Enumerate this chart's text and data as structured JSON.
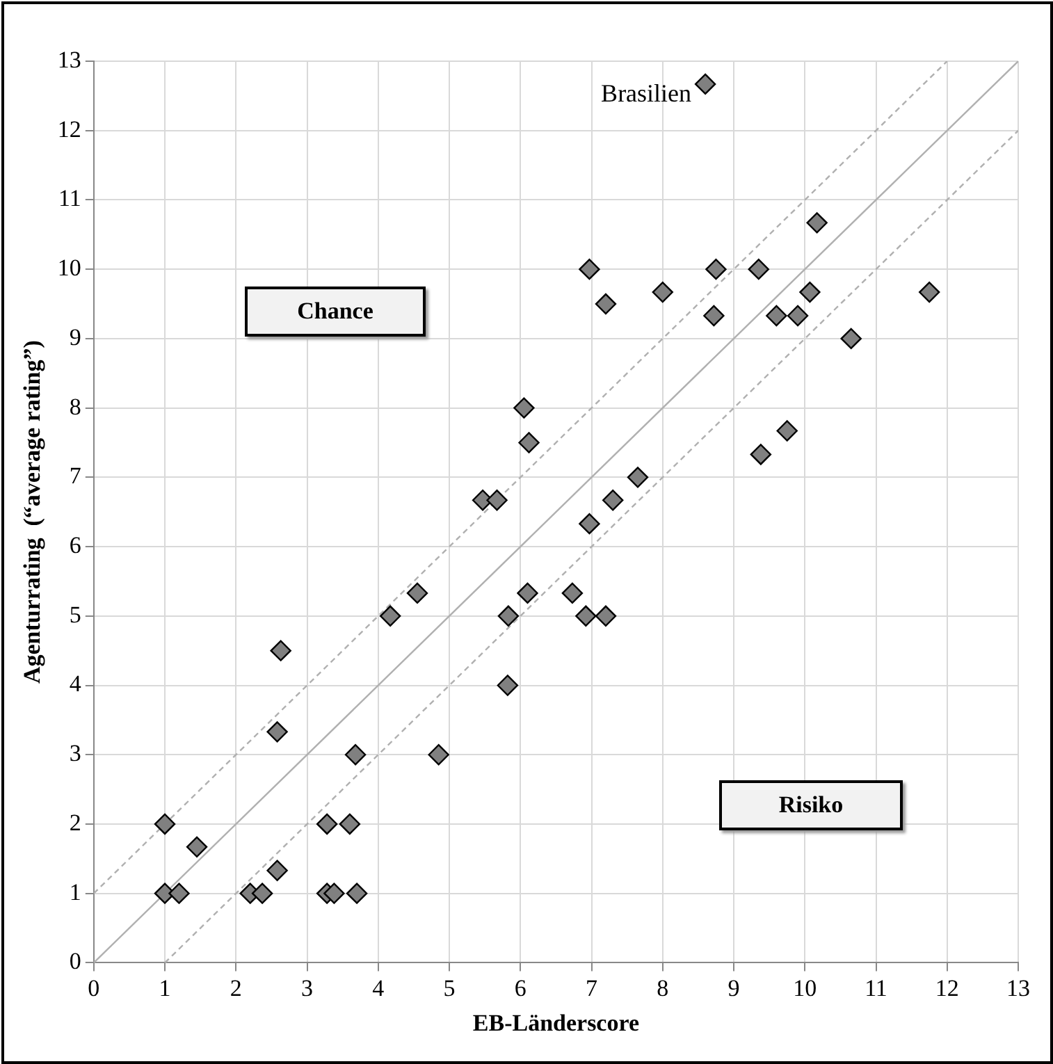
{
  "chart_data": {
    "type": "scatter",
    "xlabel": "EB-Länderscore",
    "ylabel": "Agenturrating  (“average rating”)",
    "xlim": [
      0,
      13
    ],
    "ylim": [
      0,
      13
    ],
    "xticks": [
      0,
      1,
      2,
      3,
      4,
      5,
      6,
      7,
      8,
      9,
      10,
      11,
      12,
      13
    ],
    "yticks": [
      0,
      1,
      2,
      3,
      4,
      5,
      6,
      7,
      8,
      9,
      10,
      11,
      12,
      13
    ],
    "grid": true,
    "legend": false,
    "marker": "diamond",
    "annotations": [
      {
        "text": "Brasilien",
        "x": 8.6,
        "y": 12.67
      },
      "Chance",
      "Risiko"
    ],
    "series": [
      {
        "type": "line",
        "color": "#b0b0b0",
        "line_style": "solid",
        "marker": "none",
        "x": [
          0,
          13
        ],
        "values": [
          0,
          13
        ]
      },
      {
        "type": "line",
        "color": "#b0b0b0",
        "line_style": "dashed",
        "marker": "none",
        "x": [
          0,
          12
        ],
        "values": [
          1,
          13
        ]
      },
      {
        "type": "line",
        "color": "#b0b0b0",
        "line_style": "dashed",
        "marker": "none",
        "x": [
          1,
          13
        ],
        "values": [
          0,
          12
        ]
      },
      {
        "color": "#808080",
        "x": [
          8.6,
          10.17,
          6.97,
          8.75,
          9.35,
          7.2,
          8.0,
          10.07,
          11.75,
          8.72,
          9.6,
          9.9,
          10.65,
          6.05,
          6.12,
          9.75,
          9.38,
          7.65,
          5.47,
          5.67,
          7.3,
          6.97,
          6.73,
          6.1,
          4.55,
          6.92,
          7.2,
          5.83,
          4.17,
          5.82,
          2.63,
          2.58,
          3.68,
          4.85,
          1.0,
          3.28,
          3.6,
          1.45,
          2.58,
          1.0,
          1.2,
          2.2,
          2.37,
          3.28,
          3.38,
          3.7
        ],
        "values": [
          12.67,
          10.67,
          10.0,
          10.0,
          10.0,
          9.5,
          9.67,
          9.67,
          9.67,
          9.33,
          9.33,
          9.33,
          9.0,
          8.0,
          7.5,
          7.67,
          7.33,
          7.0,
          6.67,
          6.67,
          6.67,
          6.33,
          5.33,
          5.33,
          5.33,
          5.0,
          5.0,
          5.0,
          5.0,
          4.0,
          4.5,
          3.33,
          3.0,
          3.0,
          2.0,
          2.0,
          2.0,
          1.67,
          1.33,
          1.0,
          1.0,
          1.0,
          1.0,
          1.0,
          1.0,
          1.0
        ]
      }
    ]
  }
}
